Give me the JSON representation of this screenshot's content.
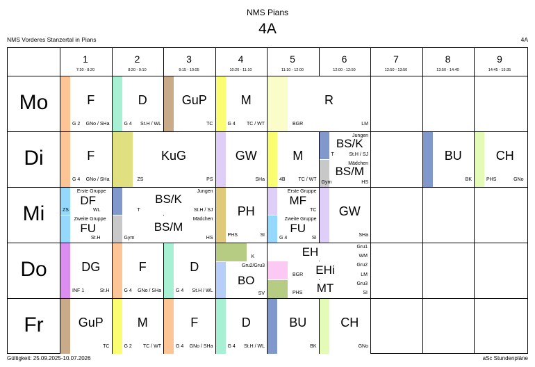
{
  "header": {
    "school_title": "NMS Pians",
    "class_title": "4A",
    "school_name": "NMS Vorderes Stanzertal in Pians",
    "class_code": "4A"
  },
  "periods": [
    {
      "num": "1",
      "time": "7:30 - 8:20"
    },
    {
      "num": "2",
      "time": "8:20 - 9:10"
    },
    {
      "num": "3",
      "time": "9:15 - 10:05"
    },
    {
      "num": "4",
      "time": "10:20 - 11:10"
    },
    {
      "num": "5",
      "time": "11:10 - 12:00"
    },
    {
      "num": "6",
      "time": "12:00 - 12:50"
    },
    {
      "num": "7",
      "time": "12:50 - 13:50"
    },
    {
      "num": "8",
      "time": "13:50 - 14:40"
    },
    {
      "num": "9",
      "time": "14:45 - 15:35"
    }
  ],
  "days": [
    "Mo",
    "Di",
    "Mi",
    "Do",
    "Fr"
  ],
  "colors": {
    "peach": "#fdc596",
    "mint": "#a7f0d3",
    "tan": "#c9ab8a",
    "yellow": "#fafc72",
    "paleyellow": "#fafcc9",
    "blue": "#8098cb",
    "grey": "#c8c8c8",
    "olive": "#e0e080",
    "lavender": "#dfcff8",
    "ochre": "#e1c97a",
    "lightgreen": "#e4fbb8",
    "skyblue": "#96d8fb",
    "violet": "#db8ef0",
    "green": "#b5cc82",
    "pink": "#fcc8f4",
    "paleblue": "#b6cef8"
  },
  "lessons": {
    "mo_1": {
      "subject": "F",
      "group": "G 2",
      "teacher": "GNo / SHa"
    },
    "mo_2": {
      "subject": "D",
      "group": "G 4",
      "teacher": "St.H / WL"
    },
    "mo_3": {
      "subject": "GuP",
      "teacher": "TC"
    },
    "mo_4": {
      "subject": "M",
      "group": "G 4",
      "teacher": "TC / WT"
    },
    "mo_5": {
      "subject": "R",
      "group": "BGR",
      "teacher": "LM"
    },
    "di_1": {
      "subject": "F",
      "group": "G 4",
      "teacher": "GNo / SHa"
    },
    "di_2": {
      "subject": "KuG",
      "group": "ZS",
      "teacher": "PS"
    },
    "di_4": {
      "subject": "GW",
      "teacher": "SHa"
    },
    "di_5": {
      "subject": "M",
      "group": "4B",
      "teacher": "TC / WT"
    },
    "di_6a": {
      "label": "Jungen",
      "subject": "BS/K",
      "room": "T",
      "teacher": "St.H / SJ"
    },
    "di_6b": {
      "label": "Mädchen",
      "subject": "BS/M",
      "room": "Gym",
      "teacher": "HS"
    },
    "di_8": {
      "subject": "BU",
      "teacher": "BK"
    },
    "di_9": {
      "subject": "CH",
      "group": "PHS",
      "teacher": "GNo"
    },
    "mi_1a": {
      "label": "Erste Gruppe",
      "subject": "DF",
      "group": "ZS",
      "teacher": "WL"
    },
    "mi_1b": {
      "label": "Zweite Gruppe",
      "subject": "FU",
      "teacher": "St.H"
    },
    "mi_2a": {
      "label": "Jungen",
      "subject": "BS/K",
      "room": "T",
      "teacher": "St.H / SJ"
    },
    "mi_2b": {
      "label": "Mädchen",
      "subject": "BS/M",
      "room": "Gym",
      "teacher": "HS"
    },
    "mi_4": {
      "subject": "PH",
      "group": "PHS",
      "teacher": "SI"
    },
    "mi_5a": {
      "label": "Erste Gruppe",
      "subject": "MF",
      "teacher": "TC"
    },
    "mi_5b": {
      "label": "Zweite Gruppe",
      "subject": "FU",
      "group": "G 4",
      "teacher": "SI"
    },
    "mi_6": {
      "subject": "GW",
      "teacher": "SHa"
    },
    "do_1": {
      "subject": "DG",
      "group": "INF 1",
      "teacher": "St.H"
    },
    "do_2": {
      "subject": "F",
      "group": "G 4",
      "teacher": "GNo / SHa"
    },
    "do_3": {
      "subject": "D",
      "group": "G 4",
      "teacher": "St.H / WL"
    },
    "do_4a": {
      "room": "K"
    },
    "do_4b": {
      "label": "Gru2/Gru3",
      "subject": "BO",
      "teacher": "SV"
    },
    "do_5a": {
      "subject": "EH",
      "label": "Gru1",
      "teacher": "WM"
    },
    "do_5b": {
      "subject": "EHi",
      "group": "BGR",
      "label": "Gru2",
      "teacher": "LM"
    },
    "do_5c": {
      "subject": "MT",
      "group": "PHS",
      "label": "Gru3",
      "teacher": "SI"
    },
    "fr_1": {
      "subject": "GuP",
      "teacher": "TC"
    },
    "fr_2": {
      "subject": "M",
      "group": "G 2",
      "teacher": "TC / WT"
    },
    "fr_3": {
      "subject": "F",
      "group": "G 4",
      "teacher": "GNo / SHa"
    },
    "fr_4": {
      "subject": "D",
      "group": "G 4",
      "teacher": "St.H / WL"
    },
    "fr_5": {
      "subject": "BU",
      "teacher": "BK"
    },
    "fr_6": {
      "subject": "CH",
      "teacher": "GNo"
    }
  },
  "footer": {
    "validity": "Gültigkeit: 25.09.2025-10.07.2026",
    "software": "aSc Stundenpläne"
  }
}
